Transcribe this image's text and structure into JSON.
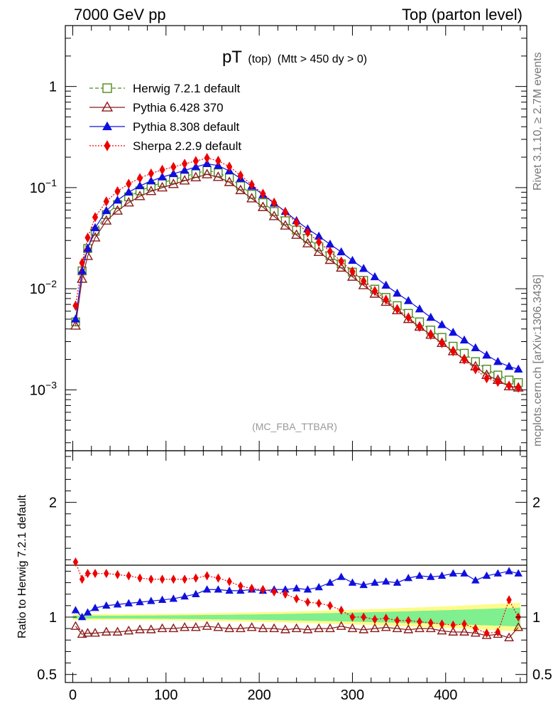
{
  "header": {
    "left": "7000 GeV pp",
    "right": "Top (parton level)"
  },
  "side_labels": {
    "rivet": "Rivet 3.1.10, ≥ 2.7M events",
    "mcplots": "mcplots.cern.ch [arXiv:1306.3436]"
  },
  "chart_data": [
    {
      "type": "scatter",
      "title": {
        "main": "pT",
        "sub": "(top)",
        "cut": "(Mtt > 450 dy > 0)"
      },
      "watermark": "(MC_FBA_TTBAR)",
      "xlim": [
        -8,
        487
      ],
      "ylim": [
        0.00025,
        4.0
      ],
      "yscale": "log",
      "ytick_values": [
        0.001,
        0.01,
        0.1,
        1
      ],
      "ytick_labels": [
        {
          "base": "10",
          "exp": "−3"
        },
        {
          "base": "10",
          "exp": "−2"
        },
        {
          "base": "10",
          "exp": "−1"
        },
        {
          "base": "1",
          "exp": ""
        }
      ],
      "legend_position": "top-left",
      "series": [
        {
          "name": "Herwig 7.2.1 default",
          "color": "#4a8a1c",
          "marker": "open-square",
          "line": "dashed",
          "x": [
            3,
            10,
            16,
            24,
            36,
            48,
            60,
            72,
            84,
            96,
            108,
            120,
            132,
            144,
            156,
            168,
            180,
            192,
            204,
            216,
            228,
            240,
            252,
            264,
            276,
            288,
            300,
            312,
            324,
            336,
            348,
            360,
            372,
            384,
            396,
            408,
            420,
            432,
            444,
            456,
            468,
            478
          ],
          "y": [
            0.0047,
            0.015,
            0.025,
            0.037,
            0.054,
            0.068,
            0.081,
            0.093,
            0.103,
            0.112,
            0.12,
            0.129,
            0.138,
            0.148,
            0.14,
            0.125,
            0.104,
            0.086,
            0.071,
            0.058,
            0.047,
            0.038,
            0.0315,
            0.026,
            0.0212,
            0.0176,
            0.0146,
            0.0121,
            0.0099,
            0.0082,
            0.0068,
            0.0057,
            0.0047,
            0.0039,
            0.0033,
            0.0027,
            0.0023,
            0.0019,
            0.0016,
            0.0014,
            0.00125,
            0.00118
          ]
        },
        {
          "name": "Pythia 6.428 370",
          "color": "#8b1a1a",
          "marker": "open-triangle",
          "line": "solid",
          "x": [
            3,
            10,
            16,
            24,
            36,
            48,
            60,
            72,
            84,
            96,
            108,
            120,
            132,
            144,
            156,
            168,
            180,
            192,
            204,
            216,
            228,
            240,
            252,
            264,
            276,
            288,
            300,
            312,
            324,
            336,
            348,
            360,
            372,
            384,
            396,
            408,
            420,
            432,
            444,
            456,
            468,
            478
          ],
          "y": [
            0.0043,
            0.0125,
            0.021,
            0.032,
            0.047,
            0.059,
            0.071,
            0.082,
            0.092,
            0.1,
            0.108,
            0.117,
            0.126,
            0.135,
            0.127,
            0.113,
            0.094,
            0.078,
            0.064,
            0.052,
            0.042,
            0.034,
            0.028,
            0.023,
            0.0192,
            0.0161,
            0.0131,
            0.0108,
            0.0089,
            0.0074,
            0.0061,
            0.005,
            0.0042,
            0.0035,
            0.0029,
            0.0024,
            0.002,
            0.0017,
            0.0014,
            0.00125,
            0.00108,
            0.00105
          ]
        },
        {
          "name": "Pythia 8.308 default",
          "color": "#1010dd",
          "marker": "filled-triangle",
          "line": "solid",
          "x": [
            3,
            10,
            16,
            24,
            36,
            48,
            60,
            72,
            84,
            96,
            108,
            120,
            132,
            144,
            156,
            168,
            180,
            192,
            204,
            216,
            228,
            240,
            252,
            264,
            276,
            288,
            300,
            312,
            324,
            336,
            348,
            360,
            372,
            384,
            396,
            408,
            420,
            432,
            444,
            456,
            468,
            478
          ],
          "y": [
            0.005,
            0.015,
            0.025,
            0.04,
            0.059,
            0.075,
            0.09,
            0.104,
            0.116,
            0.127,
            0.137,
            0.148,
            0.16,
            0.172,
            0.165,
            0.146,
            0.123,
            0.103,
            0.085,
            0.07,
            0.058,
            0.047,
            0.039,
            0.033,
            0.0275,
            0.0231,
            0.019,
            0.0158,
            0.0131,
            0.0108,
            0.009,
            0.0076,
            0.0063,
            0.0052,
            0.0044,
            0.0037,
            0.0031,
            0.0026,
            0.0022,
            0.0019,
            0.0017,
            0.0016
          ]
        },
        {
          "name": "Sherpa 2.2.9 default",
          "color": "#ee0000",
          "marker": "filled-diamond",
          "line": "dotted",
          "x": [
            3,
            10,
            16,
            24,
            36,
            48,
            60,
            72,
            84,
            96,
            108,
            120,
            132,
            144,
            156,
            168,
            180,
            192,
            204,
            216,
            228,
            240,
            252,
            264,
            276,
            288,
            300,
            312,
            324,
            336,
            348,
            360,
            372,
            384,
            396,
            408,
            420,
            432,
            444,
            456,
            468,
            478
          ],
          "y": [
            0.0068,
            0.018,
            0.032,
            0.051,
            0.073,
            0.092,
            0.109,
            0.124,
            0.138,
            0.15,
            0.16,
            0.172,
            0.183,
            0.196,
            0.184,
            0.161,
            0.132,
            0.107,
            0.087,
            0.071,
            0.057,
            0.045,
            0.036,
            0.029,
            0.0233,
            0.0186,
            0.0148,
            0.0119,
            0.0095,
            0.0078,
            0.0063,
            0.0052,
            0.0042,
            0.0035,
            0.0029,
            0.0024,
            0.002,
            0.0016,
            0.0013,
            0.0012,
            0.0011,
            0.00105
          ]
        }
      ]
    },
    {
      "type": "scatter",
      "ylabel": "Ratio to Herwig 7.2.1 default",
      "xlim": [
        -8,
        487
      ],
      "ylim": [
        0.43,
        2.45
      ],
      "ytick_values": [
        0.5,
        1,
        2
      ],
      "ytick_labels": [
        "0.5",
        "1",
        "2"
      ],
      "xtick_values": [
        0,
        100,
        200,
        300,
        400
      ],
      "xtick_labels": [
        "0",
        "100",
        "200",
        "300",
        "400"
      ],
      "reference": 1.0,
      "band_inner_color": "#7fef8f",
      "band_outer_color": "#fdfb8a",
      "series": [
        {
          "name": "Pythia 6.428 370",
          "color": "#8b1a1a",
          "marker": "open-triangle",
          "line": "solid",
          "x": [
            3,
            10,
            16,
            24,
            36,
            48,
            60,
            72,
            84,
            96,
            108,
            120,
            132,
            144,
            156,
            168,
            180,
            192,
            204,
            216,
            228,
            240,
            252,
            264,
            276,
            288,
            300,
            312,
            324,
            336,
            348,
            360,
            372,
            384,
            396,
            408,
            420,
            432,
            444,
            456,
            468,
            478
          ],
          "y": [
            0.92,
            0.85,
            0.86,
            0.86,
            0.87,
            0.87,
            0.88,
            0.89,
            0.89,
            0.9,
            0.9,
            0.91,
            0.91,
            0.92,
            0.91,
            0.9,
            0.9,
            0.91,
            0.9,
            0.9,
            0.89,
            0.9,
            0.89,
            0.9,
            0.9,
            0.92,
            0.9,
            0.89,
            0.9,
            0.91,
            0.9,
            0.89,
            0.9,
            0.9,
            0.88,
            0.87,
            0.87,
            0.86,
            0.84,
            0.85,
            0.82,
            0.91
          ]
        },
        {
          "name": "Pythia 8.308 default",
          "color": "#1010dd",
          "marker": "filled-triangle",
          "line": "solid",
          "x": [
            3,
            10,
            16,
            24,
            36,
            48,
            60,
            72,
            84,
            96,
            108,
            120,
            132,
            144,
            156,
            168,
            180,
            192,
            204,
            216,
            228,
            240,
            252,
            264,
            276,
            288,
            300,
            312,
            324,
            336,
            348,
            360,
            372,
            384,
            396,
            408,
            420,
            432,
            444,
            456,
            468,
            478
          ],
          "y": [
            1.06,
            1.0,
            1.04,
            1.08,
            1.1,
            1.11,
            1.12,
            1.13,
            1.14,
            1.15,
            1.16,
            1.18,
            1.2,
            1.24,
            1.24,
            1.23,
            1.23,
            1.24,
            1.23,
            1.24,
            1.24,
            1.25,
            1.24,
            1.26,
            1.3,
            1.35,
            1.3,
            1.28,
            1.3,
            1.31,
            1.3,
            1.34,
            1.36,
            1.35,
            1.36,
            1.38,
            1.38,
            1.32,
            1.36,
            1.38,
            1.4,
            1.38
          ]
        },
        {
          "name": "Sherpa 2.2.9 default",
          "color": "#ee0000",
          "marker": "filled-diamond",
          "line": "dotted",
          "x": [
            3,
            10,
            16,
            24,
            36,
            48,
            60,
            72,
            84,
            96,
            108,
            120,
            132,
            144,
            156,
            168,
            180,
            192,
            204,
            216,
            228,
            240,
            252,
            264,
            276,
            288,
            300,
            312,
            324,
            336,
            348,
            360,
            372,
            384,
            396,
            408,
            420,
            432,
            444,
            456,
            468,
            478
          ],
          "y": [
            1.48,
            1.33,
            1.38,
            1.38,
            1.38,
            1.37,
            1.36,
            1.34,
            1.33,
            1.33,
            1.33,
            1.33,
            1.34,
            1.36,
            1.34,
            1.31,
            1.27,
            1.25,
            1.24,
            1.22,
            1.2,
            1.16,
            1.13,
            1.12,
            1.1,
            1.06,
            1.0,
            1.0,
            0.98,
            0.99,
            0.97,
            0.97,
            0.96,
            0.95,
            0.94,
            0.93,
            0.94,
            0.9,
            0.86,
            0.87,
            1.15,
            1.0
          ]
        }
      ]
    }
  ]
}
